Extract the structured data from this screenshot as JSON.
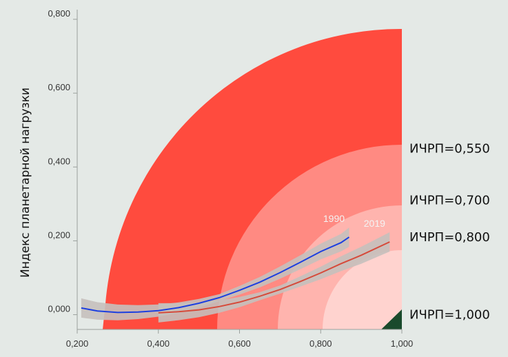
{
  "chart_data": {
    "type": "line",
    "title": "",
    "xlabel": "",
    "ylabel": "Индекс планетарной нагрузки",
    "xlim": [
      0.2,
      1.0
    ],
    "ylim": [
      -0.04,
      0.8
    ],
    "x_ticks": [
      {
        "value": 0.2,
        "label": "0,200"
      },
      {
        "value": 0.4,
        "label": "0,400"
      },
      {
        "value": 0.6,
        "label": "0,600"
      },
      {
        "value": 0.8,
        "label": "0,800"
      },
      {
        "value": 1.0,
        "label": "1,000"
      }
    ],
    "y_ticks": [
      {
        "value": 0.0,
        "label": "0,000"
      },
      {
        "value": 0.2,
        "label": "0,200"
      },
      {
        "value": 0.4,
        "label": "0,400"
      },
      {
        "value": 0.6,
        "label": "0,600"
      },
      {
        "value": 0.8,
        "label": "0,800"
      }
    ],
    "bands": [
      {
        "label": "ИЧРП=0,550",
        "color": "#ff4b3e",
        "label_y": 0.45
      },
      {
        "label": "ИЧРП=0,700",
        "color": "#ff8a82",
        "label_y": 0.31
      },
      {
        "label": "ИЧРП=0,800",
        "color": "#ffb4ae",
        "label_y": 0.21
      },
      {
        "label": "ИЧРП=1,000",
        "color": "#ffd3cf",
        "label_y": 0.0
      }
    ],
    "target_color": "#1a4a2c",
    "series": [
      {
        "name": "1990",
        "color": "#1c3fe0",
        "x": [
          0.21,
          0.25,
          0.3,
          0.35,
          0.4,
          0.45,
          0.5,
          0.55,
          0.6,
          0.65,
          0.7,
          0.75,
          0.8,
          0.85,
          0.87
        ],
        "y": [
          0.018,
          0.01,
          0.006,
          0.007,
          0.011,
          0.019,
          0.031,
          0.046,
          0.066,
          0.088,
          0.114,
          0.142,
          0.171,
          0.195,
          0.21
        ]
      },
      {
        "name": "2019",
        "color": "#d64a3a",
        "x": [
          0.4,
          0.45,
          0.5,
          0.55,
          0.6,
          0.65,
          0.7,
          0.75,
          0.8,
          0.85,
          0.9,
          0.97
        ],
        "y": [
          0.005,
          0.008,
          0.013,
          0.022,
          0.034,
          0.05,
          0.068,
          0.09,
          0.113,
          0.138,
          0.161,
          0.197
        ]
      }
    ]
  }
}
